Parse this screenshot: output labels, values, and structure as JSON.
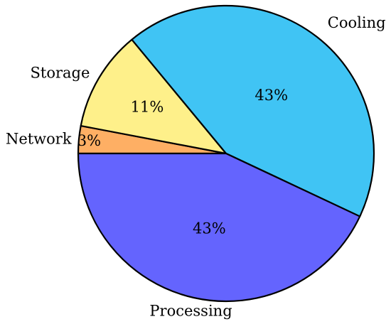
{
  "chart_data": {
    "type": "pie",
    "title": "",
    "slices": [
      {
        "label": "Cooling",
        "value": 43,
        "display": "43%",
        "color": "#40c4f4"
      },
      {
        "label": "Processing",
        "value": 43,
        "display": "43%",
        "color": "#6464fe"
      },
      {
        "label": "Network",
        "value": 3,
        "display": "3%",
        "color": "#feaf64"
      },
      {
        "label": "Storage",
        "value": 11,
        "display": "11%",
        "color": "#fef08a"
      }
    ],
    "legend": "none",
    "labels_outside": true,
    "percent_labels_inside": true
  }
}
